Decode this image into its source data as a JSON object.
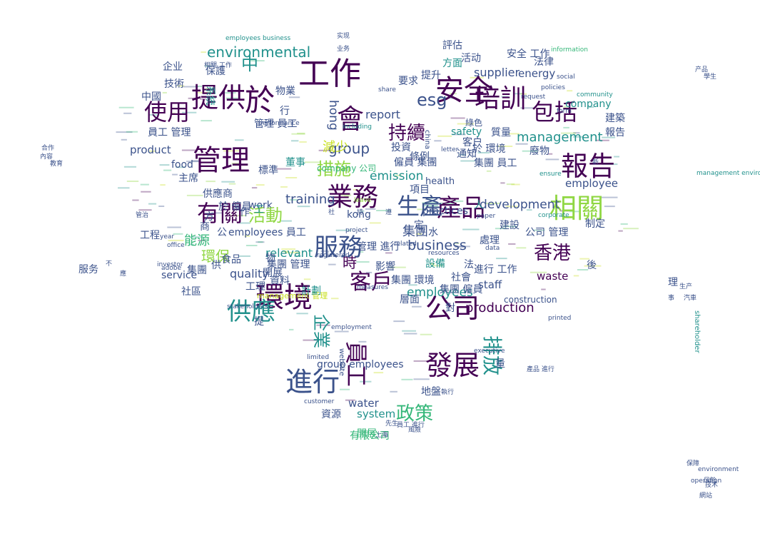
{
  "palette": {
    "dark_purple": "#440154",
    "indigo": "#3b528b",
    "blue": "#31688e",
    "teal": "#21918c",
    "green": "#35b779",
    "lime": "#90d743",
    "yellow": "#c8e020"
  },
  "word_cloud": {
    "words": [
      {
        "text": "工作",
        "color": "dark_purple"
      },
      {
        "text": "安全",
        "color": "dark_purple"
      },
      {
        "text": "提供",
        "color": "dark_purple"
      },
      {
        "text": "管理",
        "color": "dark_purple"
      },
      {
        "text": "培訓",
        "color": "dark_purple"
      },
      {
        "text": "於",
        "color": "dark_purple"
      },
      {
        "text": "會",
        "color": "dark_purple"
      },
      {
        "text": "使用",
        "color": "dark_purple"
      },
      {
        "text": "報告",
        "color": "dark_purple"
      },
      {
        "text": "包括",
        "color": "dark_purple"
      },
      {
        "text": "業務",
        "color": "dark_purple"
      },
      {
        "text": "相關",
        "color": "lime"
      },
      {
        "text": "有關",
        "color": "dark_purple"
      },
      {
        "text": "產品",
        "color": "dark_purple"
      },
      {
        "text": "生產",
        "color": "indigo"
      },
      {
        "text": "環境",
        "color": "dark_purple"
      },
      {
        "text": "服務",
        "color": "indigo"
      },
      {
        "text": "公司",
        "color": "dark_purple"
      },
      {
        "text": "客戶",
        "color": "dark_purple"
      },
      {
        "text": "員工",
        "color": "dark_purple"
      },
      {
        "text": "供應",
        "color": "teal"
      },
      {
        "text": "發展",
        "color": "dark_purple"
      },
      {
        "text": "進行",
        "color": "indigo"
      },
      {
        "text": "政策",
        "color": "green"
      },
      {
        "text": "香港",
        "color": "dark_purple"
      },
      {
        "text": "持續",
        "color": "dark_purple"
      },
      {
        "text": "esg",
        "color": "indigo"
      },
      {
        "text": "environmental",
        "color": "teal"
      },
      {
        "text": "group",
        "color": "indigo"
      },
      {
        "text": "management",
        "color": "teal"
      },
      {
        "text": "company",
        "color": "teal"
      },
      {
        "text": "employee",
        "color": "indigo"
      },
      {
        "text": "development",
        "color": "indigo"
      },
      {
        "text": "training",
        "color": "indigo"
      },
      {
        "text": "business",
        "color": "indigo"
      },
      {
        "text": "production",
        "color": "dark_purple"
      },
      {
        "text": "employees",
        "color": "teal"
      },
      {
        "text": "emission",
        "color": "teal"
      },
      {
        "text": "report",
        "color": "indigo"
      },
      {
        "text": "supplier",
        "color": "indigo"
      },
      {
        "text": "energy",
        "color": "indigo"
      },
      {
        "text": "safety",
        "color": "teal"
      },
      {
        "text": "quality",
        "color": "indigo"
      },
      {
        "text": "water",
        "color": "indigo"
      },
      {
        "text": "waste",
        "color": "dark_purple"
      },
      {
        "text": "staff",
        "color": "indigo"
      },
      {
        "text": "relevant",
        "color": "teal"
      },
      {
        "text": "product",
        "color": "indigo"
      },
      {
        "text": "system",
        "color": "teal"
      },
      {
        "text": "kong",
        "color": "indigo"
      },
      {
        "text": "hong",
        "color": "indigo"
      },
      {
        "text": "work",
        "color": "indigo"
      },
      {
        "text": "service",
        "color": "indigo"
      },
      {
        "text": "construction",
        "color": "indigo"
      },
      {
        "text": "group employees",
        "color": "indigo"
      },
      {
        "text": "排放",
        "color": "teal"
      },
      {
        "text": "活動",
        "color": "lime"
      },
      {
        "text": "措施",
        "color": "lime"
      },
      {
        "text": "有限公司",
        "color": "green"
      },
      {
        "text": "企業",
        "color": "teal"
      },
      {
        "text": "中",
        "color": "teal"
      },
      {
        "text": "集團",
        "color": "indigo"
      },
      {
        "text": "環保",
        "color": "lime"
      },
      {
        "text": "能源",
        "color": "green"
      },
      {
        "text": "評估",
        "color": "indigo"
      },
      {
        "text": "減少",
        "color": "yellow"
      },
      {
        "text": "建築",
        "color": "indigo"
      },
      {
        "text": "技術",
        "color": "indigo"
      },
      {
        "text": "方面",
        "color": "teal"
      },
      {
        "text": "法律",
        "color": "indigo"
      },
      {
        "text": "質量",
        "color": "indigo"
      },
      {
        "text": "廢物",
        "color": "indigo"
      },
      {
        "text": "資源",
        "color": "indigo"
      },
      {
        "text": "社區",
        "color": "indigo"
      },
      {
        "text": "水",
        "color": "indigo"
      },
      {
        "text": "開展",
        "color": "indigo"
      },
      {
        "text": "時",
        "color": "dark_purple"
      },
      {
        "text": "影響",
        "color": "indigo"
      },
      {
        "text": "處理",
        "color": "indigo"
      },
      {
        "text": "工程",
        "color": "indigo"
      },
      {
        "text": "設備",
        "color": "teal"
      },
      {
        "text": "綠色",
        "color": "indigo"
      },
      {
        "text": "物業",
        "color": "indigo"
      },
      {
        "text": "社會",
        "color": "indigo"
      },
      {
        "text": "標準",
        "color": "indigo"
      },
      {
        "text": "董事",
        "color": "teal"
      },
      {
        "text": "建設",
        "color": "indigo"
      },
      {
        "text": "要求",
        "color": "indigo"
      },
      {
        "text": "投資",
        "color": "indigo"
      },
      {
        "text": "提升",
        "color": "indigo"
      },
      {
        "text": "報告",
        "color": "indigo"
      },
      {
        "text": "資料",
        "color": "indigo"
      },
      {
        "text": "管理 員工",
        "color": "indigo"
      },
      {
        "text": "員工 管理",
        "color": "indigo"
      },
      {
        "text": "進行 工作",
        "color": "indigo"
      },
      {
        "text": "集團 管理",
        "color": "indigo"
      },
      {
        "text": "僱員 集團",
        "color": "indigo"
      },
      {
        "text": "於 環境",
        "color": "indigo"
      },
      {
        "text": "公司 管理",
        "color": "indigo"
      },
      {
        "text": "集團 環境",
        "color": "indigo"
      },
      {
        "text": "集團 僱員",
        "color": "indigo"
      },
      {
        "text": "供應商",
        "color": "indigo"
      },
      {
        "text": "通知",
        "color": "indigo"
      },
      {
        "text": "開展",
        "color": "green"
      },
      {
        "text": "服务",
        "color": "indigo"
      },
      {
        "text": "企业",
        "color": "indigo"
      },
      {
        "text": "集團 員工",
        "color": "indigo"
      },
      {
        "text": "管理 進行",
        "color": "indigo"
      },
      {
        "text": "於 僱員",
        "color": "indigo"
      },
      {
        "text": "employees 員工",
        "color": "indigo"
      },
      {
        "text": "company 公司",
        "color": "green"
      },
      {
        "text": "management 管理",
        "color": "yellow"
      },
      {
        "text": "employees business",
        "color": "teal"
      },
      {
        "text": "management environmental",
        "color": "teal"
      },
      {
        "text": "shareholder",
        "color": "teal"
      },
      {
        "text": "information",
        "color": "green"
      },
      {
        "text": "community",
        "color": "teal"
      },
      {
        "text": "policies",
        "color": "indigo"
      },
      {
        "text": "request",
        "color": "indigo"
      },
      {
        "text": "executive",
        "color": "indigo"
      },
      {
        "text": "website",
        "color": "indigo"
      },
      {
        "text": "customer",
        "color": "indigo"
      },
      {
        "text": "measures",
        "color": "indigo"
      },
      {
        "text": "resources",
        "color": "indigo"
      },
      {
        "text": "corporate",
        "color": "teal"
      },
      {
        "text": "environment",
        "color": "indigo"
      },
      {
        "text": "operation",
        "color": "indigo"
      },
      {
        "text": "printed",
        "color": "indigo"
      },
      {
        "text": "social",
        "color": "indigo"
      },
      {
        "text": "form",
        "color": "indigo"
      },
      {
        "text": "including",
        "color": "teal"
      },
      {
        "text": "letter",
        "color": "indigo"
      },
      {
        "text": "registered",
        "color": "indigo"
      },
      {
        "text": "project",
        "color": "indigo"
      },
      {
        "text": "stakeholders",
        "color": "indigo"
      },
      {
        "text": "year",
        "color": "indigo"
      },
      {
        "text": "office",
        "color": "indigo"
      },
      {
        "text": "investor",
        "color": "indigo"
      },
      {
        "text": "data",
        "color": "indigo"
      },
      {
        "text": "related",
        "color": "indigo"
      },
      {
        "text": "china",
        "color": "indigo"
      },
      {
        "text": "share",
        "color": "indigo"
      },
      {
        "text": "ensure",
        "color": "teal"
      },
      {
        "text": "performance",
        "color": "indigo"
      },
      {
        "text": "leave",
        "color": "lime"
      },
      {
        "text": "paper",
        "color": "indigo"
      },
      {
        "text": "employment",
        "color": "indigo"
      },
      {
        "text": "limited",
        "color": "indigo"
      },
      {
        "text": "adobe",
        "color": "indigo"
      },
      {
        "text": "health",
        "color": "indigo"
      },
      {
        "text": "practices",
        "color": "indigo"
      },
      {
        "text": "food",
        "color": "indigo"
      },
      {
        "text": "主席",
        "color": "indigo"
      },
      {
        "text": "集團",
        "color": "indigo"
      },
      {
        "text": "方",
        "color": "indigo"
      },
      {
        "text": "供",
        "color": "indigo"
      },
      {
        "text": "人",
        "color": "teal"
      },
      {
        "text": "法",
        "color": "indigo"
      },
      {
        "text": "制定",
        "color": "indigo"
      },
      {
        "text": "後",
        "color": "indigo"
      },
      {
        "text": "理",
        "color": "indigo"
      },
      {
        "text": "工理",
        "color": "indigo"
      },
      {
        "text": "定",
        "color": "indigo"
      },
      {
        "text": "量",
        "color": "indigo"
      },
      {
        "text": "物",
        "color": "indigo"
      },
      {
        "text": "提",
        "color": "indigo"
      },
      {
        "text": "對",
        "color": "indigo"
      },
      {
        "text": "工",
        "color": "teal"
      },
      {
        "text": "作",
        "color": "indigo"
      },
      {
        "text": "公",
        "color": "indigo"
      },
      {
        "text": "商",
        "color": "indigo"
      },
      {
        "text": "行",
        "color": "indigo"
      },
      {
        "text": "項目",
        "color": "indigo"
      },
      {
        "text": "客户",
        "color": "indigo"
      },
      {
        "text": "系統",
        "color": "teal"
      },
      {
        "text": "保護",
        "color": "indigo"
      },
      {
        "text": "層面",
        "color": "indigo"
      },
      {
        "text": "計劃",
        "color": "teal"
      },
      {
        "text": "食品",
        "color": "indigo"
      },
      {
        "text": "中國",
        "color": "indigo"
      },
      {
        "text": "條例",
        "color": "indigo"
      },
      {
        "text": "活动",
        "color": "indigo"
      },
      {
        "text": "安全 工作",
        "color": "indigo"
      },
      {
        "text": "產品 進行",
        "color": "indigo"
      },
      {
        "text": "相關 工作",
        "color": "indigo"
      },
      {
        "text": "管治",
        "color": "indigo"
      },
      {
        "text": "技术",
        "color": "indigo"
      },
      {
        "text": "生产",
        "color": "indigo"
      },
      {
        "text": "产品",
        "color": "indigo"
      },
      {
        "text": "风险",
        "color": "indigo"
      },
      {
        "text": "網站",
        "color": "indigo"
      },
      {
        "text": "保障",
        "color": "indigo"
      },
      {
        "text": "合作",
        "color": "indigo"
      },
      {
        "text": "內容",
        "color": "indigo"
      },
      {
        "text": "教育",
        "color": "indigo"
      },
      {
        "text": "學生",
        "color": "indigo"
      },
      {
        "text": "汽車",
        "color": "indigo"
      },
      {
        "text": "地盤",
        "color": "indigo"
      },
      {
        "text": "執行",
        "color": "indigo"
      },
      {
        "text": "風險",
        "color": "indigo"
      },
      {
        "text": "員工 進行",
        "color": "indigo"
      },
      {
        "text": "先生",
        "color": "indigo"
      },
      {
        "text": "上海",
        "color": "indigo"
      },
      {
        "text": "实现",
        "color": "indigo"
      },
      {
        "text": "业务",
        "color": "indigo"
      },
      {
        "text": "新",
        "color": "indigo"
      },
      {
        "text": "事",
        "color": "indigo"
      },
      {
        "text": "應",
        "color": "indigo"
      },
      {
        "text": "不",
        "color": "indigo"
      },
      {
        "text": "社",
        "color": "indigo"
      },
      {
        "text": "持",
        "color": "indigo"
      },
      {
        "text": "遵",
        "color": "indigo"
      }
    ]
  }
}
